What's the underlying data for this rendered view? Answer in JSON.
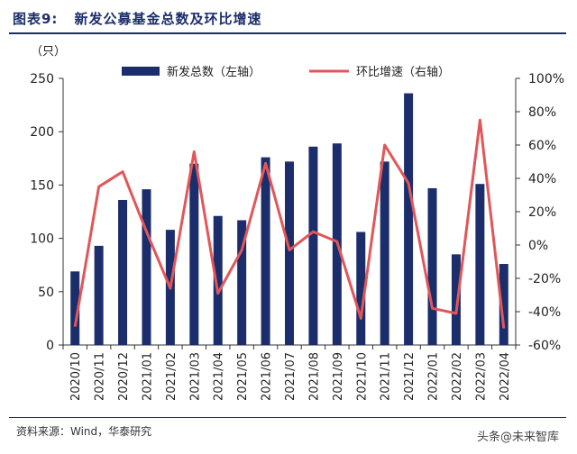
{
  "header": {
    "figure_number": "图表9:",
    "title": "新发公募基金总数及环比增速"
  },
  "unit_label": "（只）",
  "source": "资料来源：Wind，华泰研究",
  "watermark": "头条@未来智库",
  "colors": {
    "bar": "#1b2e6b",
    "line": "#e15759",
    "axis": "#333333"
  },
  "chart_data": {
    "type": "bar",
    "categories": [
      "2020/10",
      "2020/11",
      "2020/12",
      "2021/01",
      "2021/02",
      "2021/03",
      "2021/04",
      "2021/05",
      "2021/06",
      "2021/07",
      "2021/08",
      "2021/09",
      "2021/10",
      "2021/11",
      "2021/12",
      "2022/01",
      "2022/02",
      "2022/03",
      "2022/04"
    ],
    "series": [
      {
        "name": "新发总数（左轴）",
        "type": "bar",
        "axis": "left",
        "values": [
          69,
          93,
          136,
          146,
          108,
          170,
          121,
          117,
          176,
          172,
          186,
          189,
          106,
          172,
          236,
          147,
          85,
          151,
          76
        ]
      },
      {
        "name": "环比增速（右轴）",
        "type": "line",
        "axis": "right",
        "values": [
          -49,
          35,
          44,
          8,
          -26,
          56,
          -29,
          -3,
          49,
          -3,
          8,
          2,
          -44,
          60,
          37,
          -38,
          -41,
          75,
          -50
        ]
      }
    ],
    "left_axis": {
      "min": 0,
      "max": 250,
      "ticks": [
        0,
        50,
        100,
        150,
        200,
        250
      ]
    },
    "right_axis": {
      "min": -60,
      "max": 100,
      "ticks": [
        "-60%",
        "-40%",
        "-20%",
        "0%",
        "20%",
        "40%",
        "60%",
        "80%",
        "100%"
      ]
    },
    "legend": {
      "placement": "top"
    },
    "grid": false
  }
}
